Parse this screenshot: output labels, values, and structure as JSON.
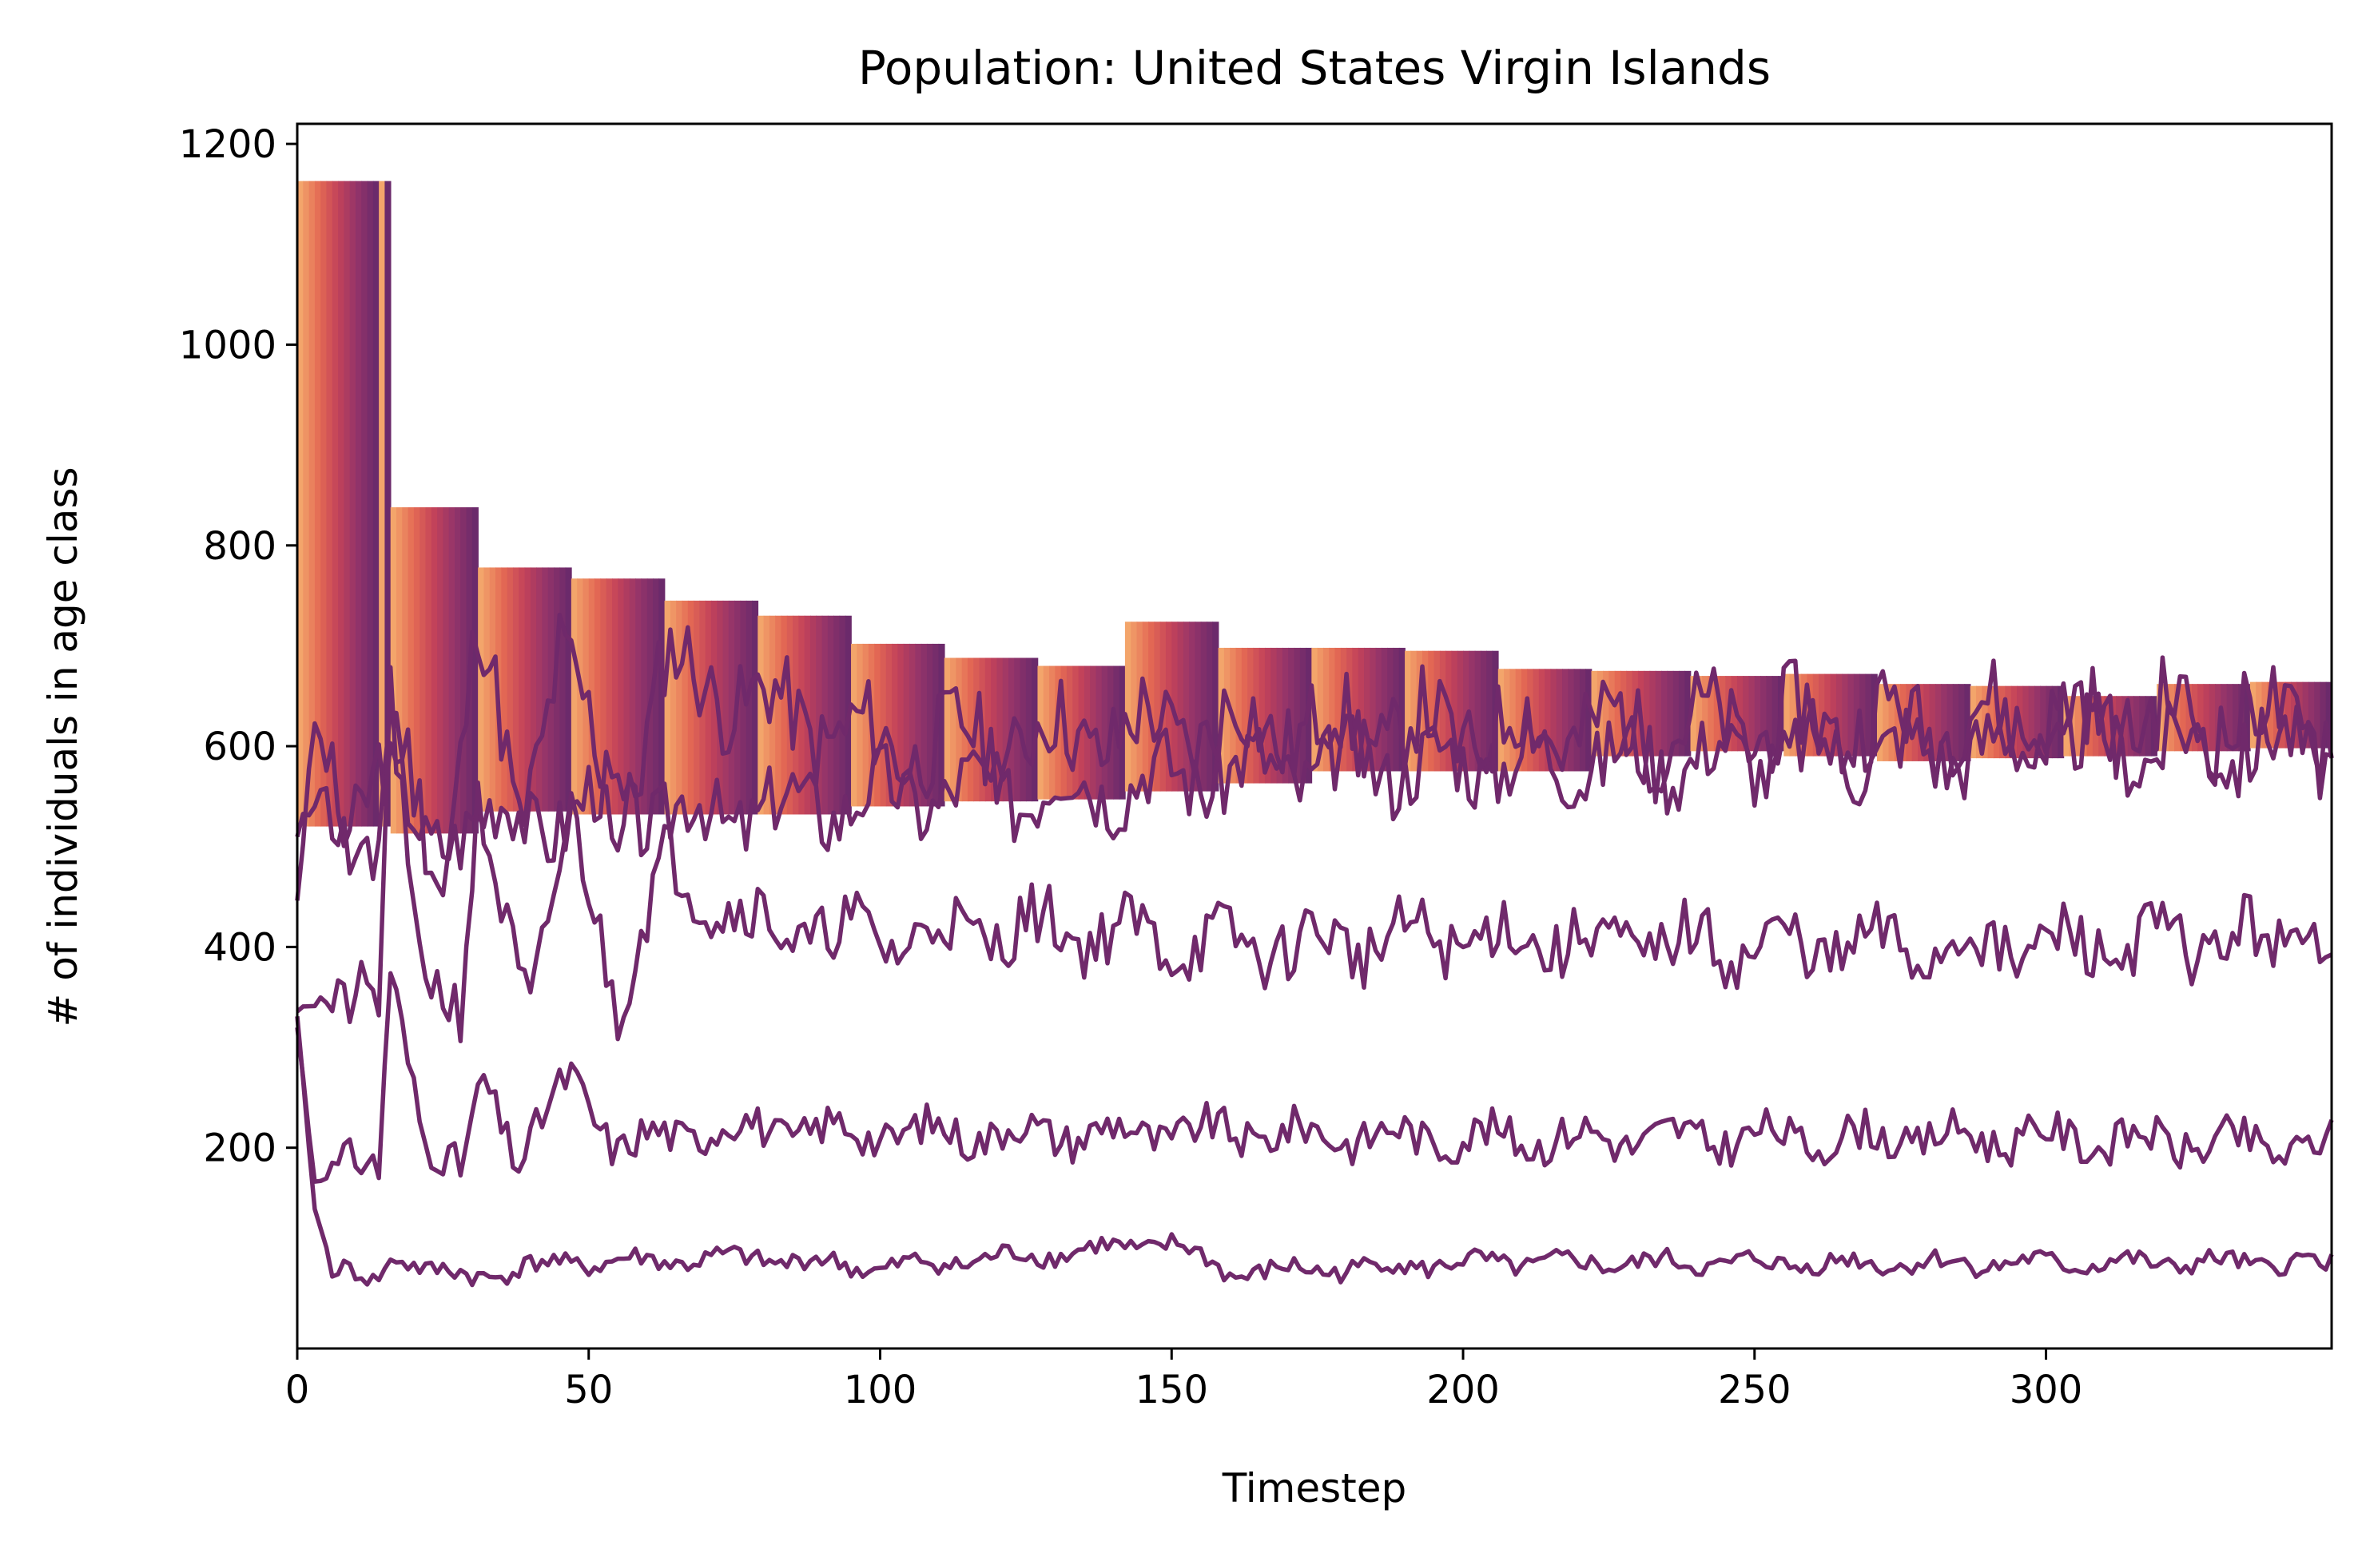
{
  "chart_data": {
    "type": "line",
    "title": "Population: United States Virgin Islands",
    "xlabel": "Timestep",
    "ylabel": "# of individuals in age class",
    "xlim": [
      0,
      349
    ],
    "ylim": [
      0,
      1220
    ],
    "xticks": [
      0,
      50,
      100,
      150,
      200,
      250,
      300
    ],
    "yticks": [
      200,
      400,
      600,
      800,
      1000,
      1200
    ],
    "grid": false,
    "legend": "none",
    "colormap": [
      "#f3a56b",
      "#e46a54",
      "#c2425a",
      "#93346a",
      "#6b2a6b"
    ],
    "line_color": "#70296b",
    "block_band": {
      "breaks": [
        0,
        14,
        16,
        31,
        47,
        63,
        79,
        95,
        111,
        127,
        142,
        158,
        174,
        190,
        206,
        222,
        239,
        255,
        271,
        287,
        303,
        319,
        335,
        349
      ],
      "tops": [
        1163,
        1163,
        838,
        778,
        767,
        745,
        730,
        702,
        688,
        680,
        724,
        698,
        698,
        695,
        677,
        675,
        670,
        672,
        662,
        660,
        650,
        662,
        664,
        664
      ],
      "bottoms": [
        520,
        520,
        513,
        535,
        532,
        532,
        532,
        540,
        545,
        547,
        555,
        563,
        575,
        575,
        575,
        590,
        595,
        590,
        585,
        588,
        590,
        595,
        598,
        598
      ]
    },
    "series": [
      {
        "anchors": [
          [
            0,
            450
          ],
          [
            3,
            620
          ],
          [
            8,
            510
          ],
          [
            14,
            600
          ],
          [
            22,
            490
          ],
          [
            30,
            540
          ],
          [
            40,
            520
          ],
          [
            50,
            545
          ],
          [
            70,
            530
          ],
          [
            100,
            550
          ],
          [
            130,
            560
          ],
          [
            160,
            575
          ],
          [
            200,
            585
          ],
          [
            250,
            590
          ],
          [
            300,
            600
          ],
          [
            349,
            600
          ]
        ],
        "amp": 38,
        "period": 16,
        "seed": 3
      },
      {
        "anchors": [
          [
            0,
            500
          ],
          [
            4,
            560
          ],
          [
            13,
            470
          ],
          [
            16,
            620
          ],
          [
            25,
            470
          ],
          [
            31,
            720
          ],
          [
            38,
            520
          ],
          [
            45,
            700
          ],
          [
            55,
            520
          ],
          [
            63,
            680
          ],
          [
            80,
            640
          ],
          [
            100,
            600
          ],
          [
            130,
            610
          ],
          [
            160,
            620
          ],
          [
            200,
            615
          ],
          [
            250,
            620
          ],
          [
            300,
            630
          ],
          [
            349,
            625
          ]
        ],
        "amp": 45,
        "period": 16,
        "seed": 11
      },
      {
        "anchors": [
          [
            0,
            340
          ],
          [
            10,
            360
          ],
          [
            14,
            330
          ],
          [
            16,
            640
          ],
          [
            20,
            420
          ],
          [
            28,
            330
          ],
          [
            31,
            520
          ],
          [
            40,
            350
          ],
          [
            47,
            520
          ],
          [
            55,
            350
          ],
          [
            63,
            480
          ],
          [
            80,
            420
          ],
          [
            100,
            410
          ],
          [
            130,
            420
          ],
          [
            160,
            400
          ],
          [
            200,
            410
          ],
          [
            250,
            400
          ],
          [
            300,
            400
          ],
          [
            349,
            410
          ]
        ],
        "amp": 32,
        "period": 16,
        "seed": 21
      },
      {
        "anchors": [
          [
            0,
            320
          ],
          [
            3,
            170
          ],
          [
            8,
            190
          ],
          [
            14,
            170
          ],
          [
            16,
            380
          ],
          [
            22,
            210
          ],
          [
            28,
            170
          ],
          [
            32,
            270
          ],
          [
            38,
            190
          ],
          [
            47,
            270
          ],
          [
            55,
            200
          ],
          [
            70,
            220
          ],
          [
            100,
            215
          ],
          [
            130,
            215
          ],
          [
            160,
            215
          ],
          [
            200,
            210
          ],
          [
            250,
            210
          ],
          [
            300,
            210
          ],
          [
            349,
            200
          ]
        ],
        "amp": 20,
        "period": 16,
        "seed": 31
      },
      {
        "anchors": [
          [
            0,
            330
          ],
          [
            3,
            140
          ],
          [
            6,
            80
          ],
          [
            13,
            65
          ],
          [
            17,
            95
          ],
          [
            23,
            75
          ],
          [
            30,
            72
          ],
          [
            45,
            85
          ],
          [
            80,
            90
          ],
          [
            100,
            80
          ],
          [
            150,
            105
          ],
          [
            160,
            75
          ],
          [
            200,
            85
          ],
          [
            250,
            85
          ],
          [
            300,
            85
          ],
          [
            349,
            85
          ]
        ],
        "amp": 10,
        "period": 16,
        "seed": 41
      }
    ]
  }
}
